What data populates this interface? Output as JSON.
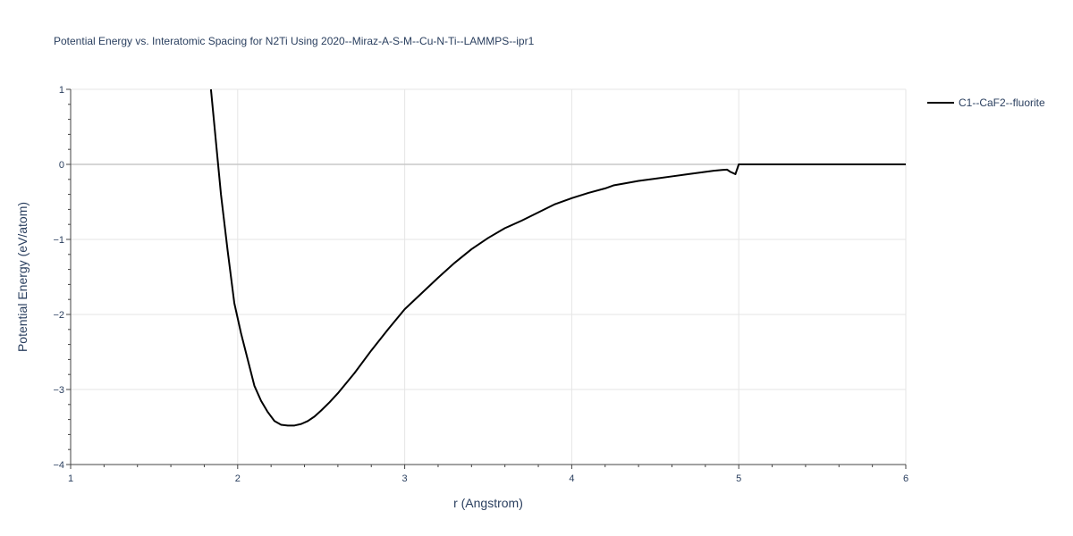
{
  "chart_data": {
    "type": "line",
    "title": "Potential Energy vs. Interatomic Spacing for N2Ti Using 2020--Miraz-A-S-M--Cu-N-Ti--LAMMPS--ipr1",
    "xlabel": "r (Angstrom)",
    "ylabel": "Potential Energy (eV/atom)",
    "xlim": [
      1,
      6
    ],
    "ylim": [
      -4,
      1
    ],
    "x_ticks": [
      1,
      2,
      3,
      4,
      5,
      6
    ],
    "y_ticks": [
      -4,
      -3,
      -2,
      -1,
      0,
      1
    ],
    "x_tick_labels": [
      "1",
      "2",
      "3",
      "4",
      "5",
      "6"
    ],
    "y_tick_labels": [
      "−4",
      "−3",
      "−2",
      "−1",
      "0",
      "1"
    ],
    "grid": true,
    "legend_position": "top-right",
    "series": [
      {
        "name": "C1--CaF2--fluorite",
        "color": "#000000",
        "x": [
          1.84,
          1.87,
          1.9,
          1.94,
          1.98,
          2.02,
          2.06,
          2.1,
          2.14,
          2.18,
          2.22,
          2.26,
          2.3,
          2.34,
          2.38,
          2.42,
          2.46,
          2.5,
          2.55,
          2.6,
          2.7,
          2.8,
          2.9,
          3.0,
          3.1,
          3.2,
          3.3,
          3.4,
          3.5,
          3.6,
          3.7,
          3.8,
          3.9,
          4.0,
          4.1,
          4.2,
          4.25,
          4.3,
          4.4,
          4.5,
          4.6,
          4.7,
          4.8,
          4.85,
          4.9,
          4.93,
          4.95,
          4.98,
          5.0,
          5.1,
          5.5,
          6.0
        ],
        "y": [
          1.0,
          0.3,
          -0.4,
          -1.15,
          -1.85,
          -2.25,
          -2.6,
          -2.95,
          -3.15,
          -3.3,
          -3.42,
          -3.47,
          -3.48,
          -3.48,
          -3.46,
          -3.42,
          -3.36,
          -3.28,
          -3.17,
          -3.05,
          -2.78,
          -2.48,
          -2.2,
          -1.93,
          -1.72,
          -1.51,
          -1.31,
          -1.13,
          -0.98,
          -0.85,
          -0.75,
          -0.64,
          -0.53,
          -0.45,
          -0.38,
          -0.32,
          -0.28,
          -0.26,
          -0.22,
          -0.19,
          -0.16,
          -0.13,
          -0.1,
          -0.085,
          -0.075,
          -0.07,
          -0.1,
          -0.13,
          0.0,
          0.0,
          0.0,
          0.0
        ]
      }
    ]
  }
}
